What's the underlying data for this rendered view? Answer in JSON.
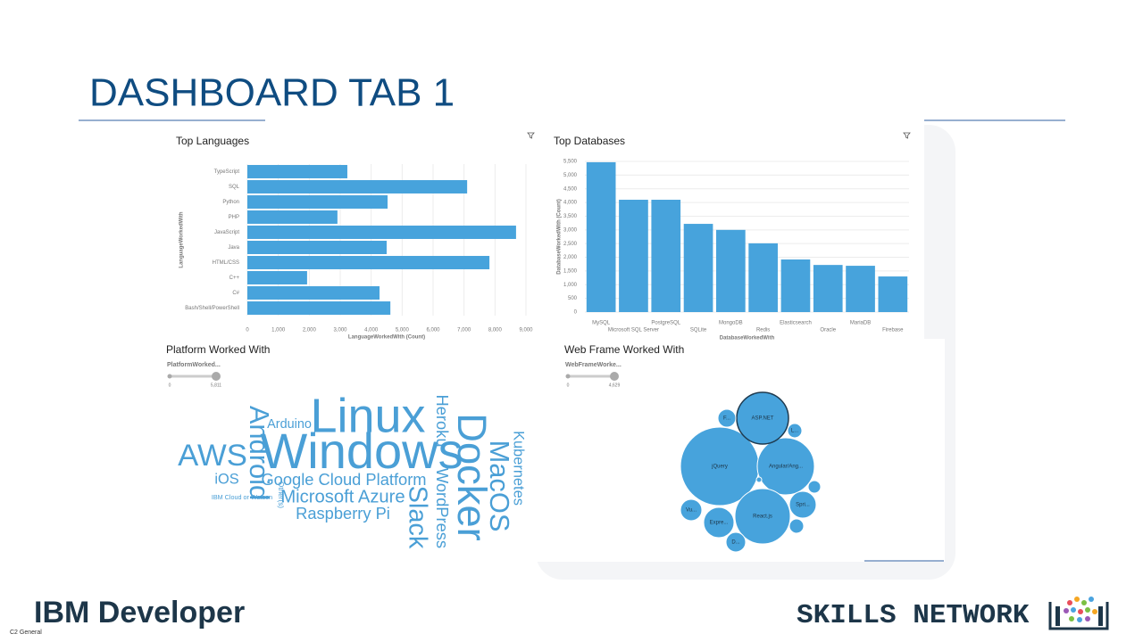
{
  "slide": {
    "title": "DASHBOARD TAB 1",
    "brand": "IBM Developer",
    "skills_network": "SKILLS NETWORK",
    "classification": "C2 General"
  },
  "chart_data": [
    {
      "type": "bar",
      "orientation": "horizontal",
      "title": "Top Languages",
      "categories": [
        "TypeScript",
        "SQL",
        "Python",
        "PHP",
        "JavaScript",
        "Java",
        "HTML/CSS",
        "C++",
        "C#",
        "Bash/Shell/PowerShell"
      ],
      "values": [
        3230,
        7100,
        4530,
        2910,
        8680,
        4500,
        7820,
        1930,
        4270,
        4620
      ],
      "color": "#47a3dc",
      "xlim": [
        0,
        9000
      ],
      "xticks": [
        0,
        {
          "value": 1000,
          "label": "1,000"
        },
        {
          "value": 2000,
          "label": "2,000"
        },
        {
          "value": 3000,
          "label": "3,000"
        },
        {
          "value": 4000,
          "label": "4,000"
        },
        {
          "value": 5000,
          "label": "5,000"
        },
        {
          "value": 6000,
          "label": "6,000"
        },
        {
          "value": 7000,
          "label": "7,000"
        },
        {
          "value": 8000,
          "label": "8,000"
        },
        {
          "value": 9000,
          "label": "9,000"
        }
      ],
      "x_label": "LanguageWorkedWith (Count)",
      "y_label": "LanguageWorkedWith",
      "grid": true
    },
    {
      "type": "bar",
      "orientation": "vertical",
      "title": "Top Databases",
      "categories": [
        "MySQL",
        "Microsoft SQL Server",
        "PostgreSQL",
        "SQLite",
        "MongoDB",
        "Redis",
        "Elasticsearch",
        "Oracle",
        "MariaDB",
        "Firebase"
      ],
      "values": [
        5470,
        4100,
        4100,
        3220,
        3000,
        2510,
        1920,
        1720,
        1690,
        1300
      ],
      "color": "#47a3dc",
      "ylim": [
        0,
        5500
      ],
      "yticks": [
        0,
        500,
        {
          "value": 1000,
          "label": "1,000"
        },
        {
          "value": 1500,
          "label": "1,500"
        },
        {
          "value": 2000,
          "label": "2,000"
        },
        {
          "value": 2500,
          "label": "2,500"
        },
        {
          "value": 3000,
          "label": "3,000"
        },
        {
          "value": 3500,
          "label": "3,500"
        },
        {
          "value": 4000,
          "label": "4,000"
        },
        {
          "value": 4500,
          "label": "4,500"
        },
        {
          "value": 5000,
          "label": "5,000"
        },
        {
          "value": 5500,
          "label": "5,500"
        }
      ],
      "x_label": "DatabaseWorkedWith",
      "y_label": "DatabaseWorkedWith (Count)",
      "grid": true
    },
    {
      "type": "wordcloud",
      "title": "Platform Worked With",
      "filter_label": "PlatformWorked...",
      "size_range": [
        0,
        {
          "value": 5811,
          "label": "5,811"
        }
      ],
      "categories": [
        "Windows",
        "Linux",
        "Docker",
        "AWS",
        "Android",
        "MacOS",
        "Slack",
        "Microsoft Azure",
        "Google Cloud Platform",
        "Raspberry Pi",
        "WordPress",
        "Heroku",
        "Kubernetes",
        "iOS",
        "Arduino",
        "Other(s)",
        "IBM Cloud or Watson"
      ],
      "values": [
        5811,
        5600,
        4700,
        3600,
        3200,
        3200,
        3000,
        2100,
        1900,
        1900,
        1900,
        1900,
        1700,
        1700,
        1500,
        850,
        750
      ],
      "color": "#4a9fd6"
    },
    {
      "type": "bubble",
      "title": "Web Frame Worked With",
      "filter_label": "WebFrameWorke...",
      "size_range": [
        0,
        {
          "value": 4629,
          "label": "4,629"
        }
      ],
      "categories": [
        "jQuery",
        "Angular/Ang...",
        "React.js",
        "ASP.NET",
        "Expre...",
        "Spri...",
        "Vu...",
        "D...",
        "F...",
        "L...",
        null,
        null,
        null
      ],
      "values": [
        4629,
        2448,
        2298,
        2011,
        691,
        538,
        344,
        289,
        239,
        153,
        153,
        117,
        22
      ],
      "color": "#47a3dc"
    }
  ]
}
